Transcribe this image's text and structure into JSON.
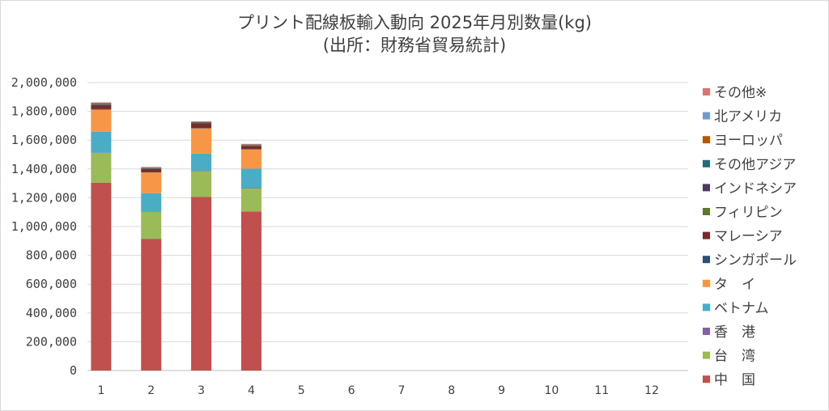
{
  "chart_data": {
    "type": "bar",
    "stacked": true,
    "title": "プリント配線板輸入動向 2025年月別数量(kg)",
    "subtitle": "(出所：財務省貿易統計)",
    "xlabel": "",
    "ylabel": "",
    "ylim": [
      0,
      2000000
    ],
    "yticks": [
      0,
      200000,
      400000,
      600000,
      800000,
      1000000,
      1200000,
      1400000,
      1600000,
      1800000,
      2000000
    ],
    "ytick_labels": [
      "0",
      "200,000",
      "400,000",
      "600,000",
      "800,000",
      "1,000,000",
      "1,200,000",
      "1,400,000",
      "1,600,000",
      "1,800,000",
      "2,000,000"
    ],
    "categories": [
      "1",
      "2",
      "3",
      "4",
      "5",
      "6",
      "7",
      "8",
      "9",
      "10",
      "11",
      "12"
    ],
    "grid": true,
    "legend_position": "right",
    "series": [
      {
        "name": "中　国",
        "color": "#c0504d",
        "values": [
          1305000,
          915000,
          1205000,
          1105000,
          null,
          null,
          null,
          null,
          null,
          null,
          null,
          null
        ]
      },
      {
        "name": "台　湾",
        "color": "#9bbb59",
        "values": [
          205000,
          190000,
          180000,
          160000,
          null,
          null,
          null,
          null,
          null,
          null,
          null,
          null
        ]
      },
      {
        "name": "香　港",
        "color": "#8064a2",
        "values": [
          3000,
          2000,
          2000,
          2000,
          null,
          null,
          null,
          null,
          null,
          null,
          null,
          null
        ]
      },
      {
        "name": "ベトナム",
        "color": "#4bacc6",
        "values": [
          145000,
          125000,
          120000,
          135000,
          null,
          null,
          null,
          null,
          null,
          null,
          null,
          null
        ]
      },
      {
        "name": "タ　イ",
        "color": "#f79646",
        "values": [
          155000,
          145000,
          175000,
          135000,
          null,
          null,
          null,
          null,
          null,
          null,
          null,
          null
        ]
      },
      {
        "name": "シンガポール",
        "color": "#2c4d75",
        "values": [
          2000,
          2000,
          2000,
          2000,
          null,
          null,
          null,
          null,
          null,
          null,
          null,
          null
        ]
      },
      {
        "name": "マレーシア",
        "color": "#772c2a",
        "values": [
          30000,
          20000,
          30000,
          20000,
          null,
          null,
          null,
          null,
          null,
          null,
          null,
          null
        ]
      },
      {
        "name": "フィリピン",
        "color": "#5f7530",
        "values": [
          2000,
          2000,
          2000,
          2000,
          null,
          null,
          null,
          null,
          null,
          null,
          null,
          null
        ]
      },
      {
        "name": "インドネシア",
        "color": "#4d3b62",
        "values": [
          4000,
          3000,
          4000,
          3000,
          null,
          null,
          null,
          null,
          null,
          null,
          null,
          null
        ]
      },
      {
        "name": "その他アジア",
        "color": "#276a7c",
        "values": [
          2000,
          2000,
          2000,
          2000,
          null,
          null,
          null,
          null,
          null,
          null,
          null,
          null
        ]
      },
      {
        "name": "ヨーロッパ",
        "color": "#b65708",
        "values": [
          5000,
          4000,
          5000,
          4000,
          null,
          null,
          null,
          null,
          null,
          null,
          null,
          null
        ]
      },
      {
        "name": "北アメリカ",
        "color": "#729aca",
        "values": [
          2000,
          2000,
          2000,
          2000,
          null,
          null,
          null,
          null,
          null,
          null,
          null,
          null
        ]
      },
      {
        "name": "その他※",
        "color": "#d97674",
        "values": [
          2000,
          2000,
          2000,
          2000,
          null,
          null,
          null,
          null,
          null,
          null,
          null,
          null
        ]
      }
    ]
  }
}
